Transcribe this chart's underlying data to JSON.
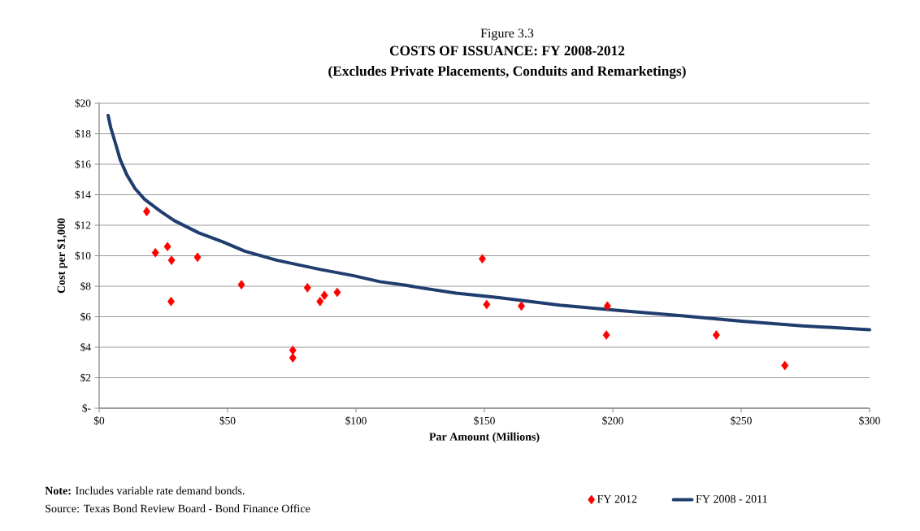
{
  "chart_data": {
    "type": "scatter",
    "title": "COSTS OF ISSUANCE: FY 2008-2012",
    "subtitle": "(Excludes Private Placements, Conduits and Remarketings)",
    "xlabel": "Par Amount  (Millions)",
    "ylabel": "Cost per $1,000",
    "annotations": [
      "Figure 3.3",
      "**Note:** Includes variable rate demand bonds.",
      "Source: Texas Bond Review Board - Bond Finance Office"
    ],
    "xlim": [
      0,
      300
    ],
    "xticks": [
      {
        "value": 0,
        "label": "$0"
      },
      {
        "value": 50,
        "label": "$50"
      },
      {
        "value": 100,
        "label": "$100"
      },
      {
        "value": 150,
        "label": "$150"
      },
      {
        "value": 200,
        "label": "$200"
      },
      {
        "value": 250,
        "label": "$250"
      },
      {
        "value": 300,
        "label": "$300"
      }
    ],
    "ylim": [
      0,
      20
    ],
    "yticks": [
      {
        "value": 0,
        "label": "$-"
      },
      {
        "value": 2,
        "label": "$2"
      },
      {
        "value": 4,
        "label": "$4"
      },
      {
        "value": 6,
        "label": "$6"
      },
      {
        "value": 8,
        "label": "$8"
      },
      {
        "value": 10,
        "label": "$10"
      },
      {
        "value": 12,
        "label": "$12"
      },
      {
        "value": 14,
        "label": "$14"
      },
      {
        "value": 16,
        "label": "$16"
      },
      {
        "value": 18,
        "label": "$18"
      },
      {
        "value": 20,
        "label": "$20"
      }
    ],
    "grid": "y",
    "legend": "bottom right",
    "series": [
      {
        "name": "FY 2012",
        "marker": "diamond",
        "color": "#ff0000",
        "x": [
          18.5,
          21.9,
          26.6,
          28.2,
          28.0,
          38.3,
          55.4,
          75.4,
          75.4,
          81.1,
          86.0,
          87.7,
          92.7,
          149.2,
          150.9,
          164.4,
          197.9,
          197.5,
          240.3,
          267.0
        ],
        "values": [
          12.9,
          10.2,
          10.6,
          9.7,
          7.0,
          9.9,
          8.1,
          3.8,
          3.3,
          7.9,
          7.0,
          7.4,
          7.6,
          9.8,
          6.8,
          6.7,
          6.7,
          4.8,
          4.8,
          2.8
        ]
      },
      {
        "name": "FY 2008 - 2011",
        "type": "line",
        "marker": "none",
        "line_style": "solid",
        "color": "#1f3d6e",
        "x": [
          3.5,
          4.5,
          6.3,
          8.2,
          10.8,
          14.0,
          17.7,
          24.0,
          29.3,
          38.8,
          48.3,
          56.7,
          69.3,
          77.7,
          86.1,
          98.8,
          109.3,
          119.9,
          125.1,
          139.0,
          155.6,
          179.3,
          203.0,
          226.7,
          250.2,
          273.9,
          300.0
        ],
        "values": [
          19.2,
          18.4,
          17.4,
          16.3,
          15.3,
          14.4,
          13.7,
          12.9,
          12.3,
          11.5,
          10.9,
          10.3,
          9.7,
          9.4,
          9.1,
          8.7,
          8.3,
          8.05,
          7.9,
          7.55,
          7.25,
          6.76,
          6.4,
          6.06,
          5.7,
          5.4,
          5.15
        ]
      }
    ]
  }
}
